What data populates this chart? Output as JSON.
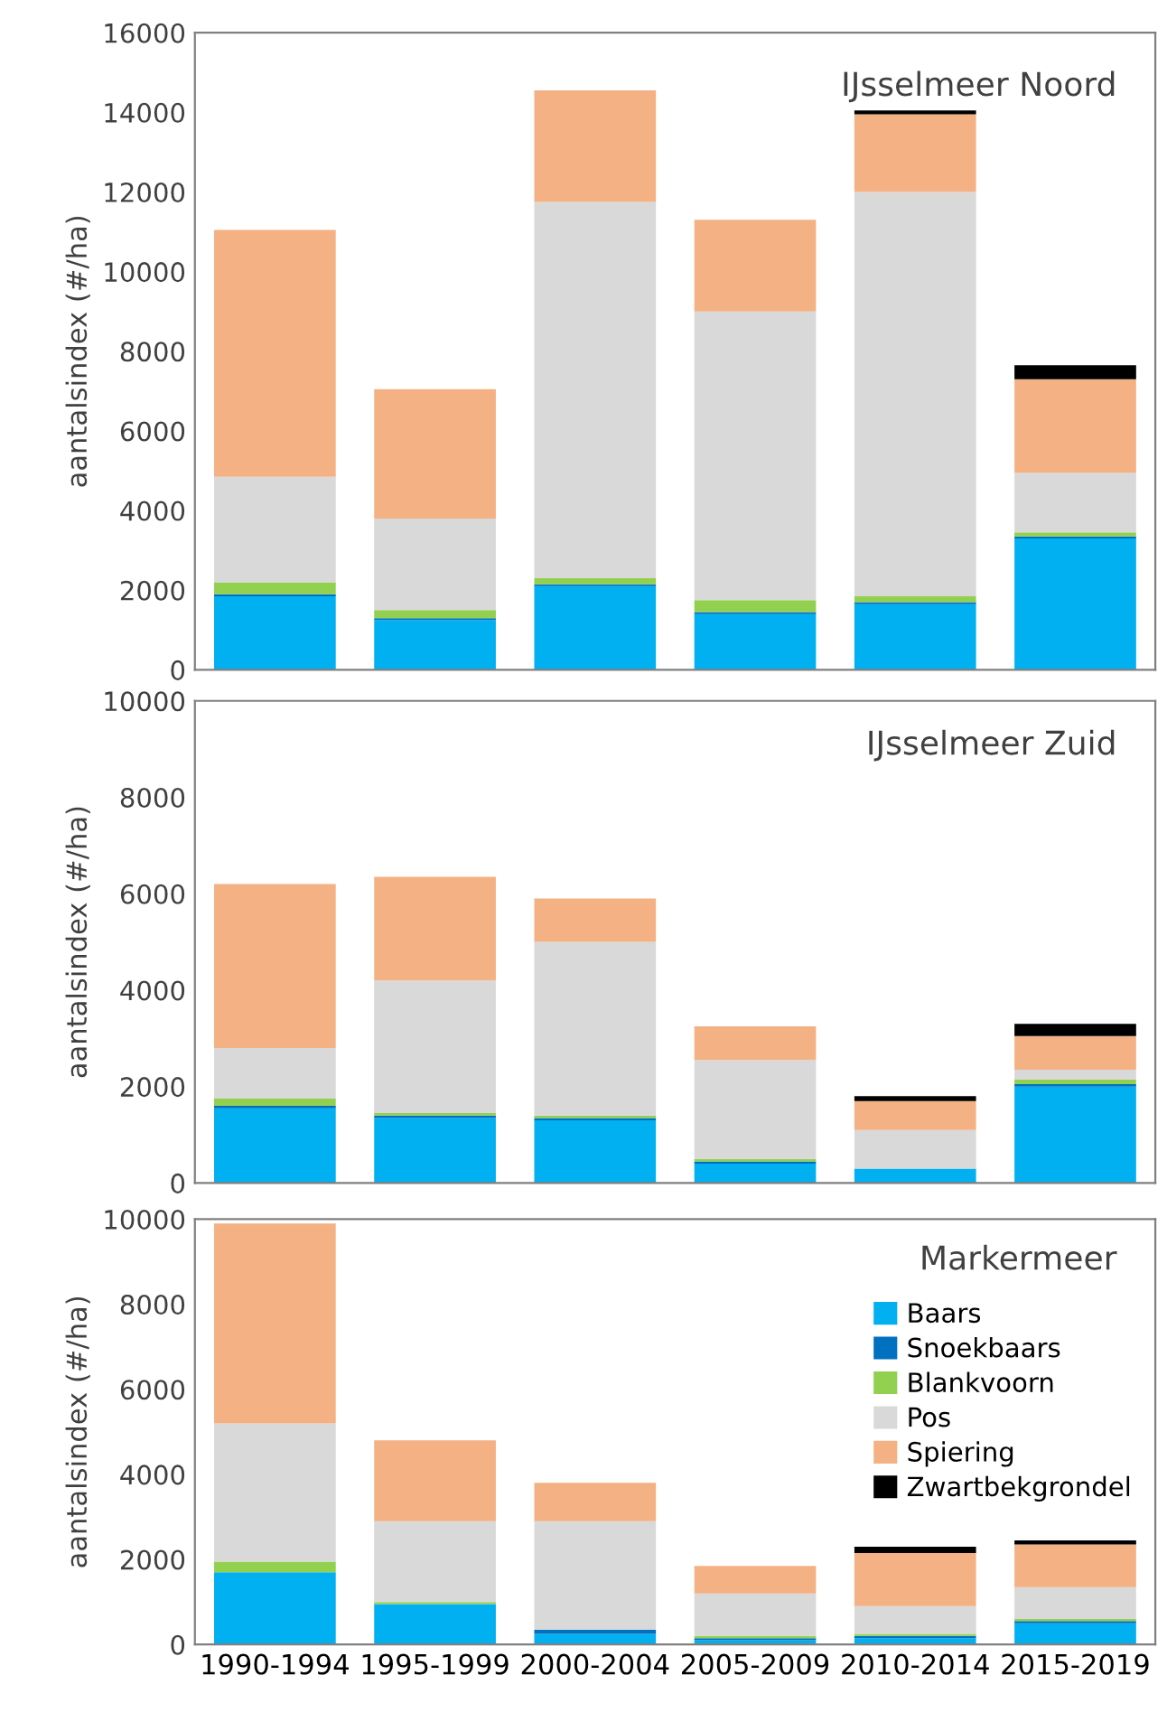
{
  "chart_data": [
    {
      "type": "bar",
      "stacked": true,
      "title": "IJsselmeer Noord",
      "ylabel": "aantalsindex (#/ha)",
      "categories": [
        null,
        null,
        null,
        null,
        null,
        null
      ],
      "ylim": [
        0,
        16000
      ],
      "yticks": [
        0,
        2000,
        4000,
        6000,
        8000,
        10000,
        12000,
        14000,
        16000
      ],
      "tick_labels": "y",
      "grid": false,
      "legend": false,
      "series": [
        {
          "color": "#00b0f0",
          "values": [
            1850,
            1250,
            2100,
            1400,
            1650,
            3300
          ]
        },
        {
          "color": "#0070c0",
          "values": [
            50,
            50,
            50,
            50,
            50,
            50
          ]
        },
        {
          "color": "#92d050",
          "values": [
            300,
            200,
            150,
            300,
            150,
            100
          ]
        },
        {
          "color": "#d9d9d9",
          "values": [
            2650,
            2300,
            9450,
            7250,
            10150,
            1500
          ]
        },
        {
          "color": "#f4b183",
          "values": [
            6200,
            3250,
            2800,
            2300,
            1950,
            2350
          ]
        },
        {
          "color": "#000000",
          "values": [
            0,
            0,
            0,
            0,
            100,
            350
          ]
        }
      ]
    },
    {
      "type": "bar",
      "stacked": true,
      "title": "IJsselmeer Zuid",
      "ylabel": "aantalsindex (#/ha)",
      "categories": [
        null,
        null,
        null,
        null,
        null,
        null
      ],
      "ylim": [
        0,
        10000
      ],
      "yticks": [
        0,
        2000,
        4000,
        6000,
        8000,
        10000
      ],
      "tick_labels": "y",
      "grid": false,
      "legend": false,
      "series": [
        {
          "color": "#00b0f0",
          "values": [
            1550,
            1350,
            1300,
            400,
            300,
            2000
          ]
        },
        {
          "color": "#0070c0",
          "values": [
            50,
            50,
            50,
            50,
            0,
            50
          ]
        },
        {
          "color": "#92d050",
          "values": [
            150,
            50,
            50,
            50,
            0,
            100
          ]
        },
        {
          "color": "#d9d9d9",
          "values": [
            1050,
            2750,
            3600,
            2050,
            800,
            200
          ]
        },
        {
          "color": "#f4b183",
          "values": [
            3400,
            2150,
            900,
            700,
            600,
            700
          ]
        },
        {
          "color": "#000000",
          "values": [
            0,
            0,
            0,
            0,
            100,
            250
          ]
        }
      ]
    },
    {
      "type": "bar",
      "stacked": true,
      "title": "Markermeer",
      "ylabel": "aantalsindex (#/ha)",
      "categories": [
        "1990-1994",
        "1995-1999",
        "2000-2004",
        "2005-2009",
        "2010-2014",
        "2015-2019"
      ],
      "ylim": [
        0,
        10000
      ],
      "yticks": [
        0,
        2000,
        4000,
        6000,
        8000,
        10000
      ],
      "grid": false,
      "legend": "top right",
      "series": [
        {
          "name": "Baars",
          "color": "#00b0f0",
          "values": [
            1700,
            950,
            250,
            100,
            150,
            500
          ]
        },
        {
          "name": "Snoekbaars",
          "color": "#0070c0",
          "values": [
            0,
            0,
            100,
            50,
            50,
            50
          ]
        },
        {
          "name": "Blankvoorn",
          "color": "#92d050",
          "values": [
            250,
            50,
            0,
            50,
            50,
            50
          ]
        },
        {
          "name": "Pos",
          "color": "#d9d9d9",
          "values": [
            3250,
            1900,
            2550,
            1000,
            650,
            750
          ]
        },
        {
          "name": "Spiering",
          "color": "#f4b183",
          "values": [
            4700,
            1900,
            900,
            650,
            1250,
            1000
          ]
        },
        {
          "name": "Zwartbekgrondel",
          "color": "#000000",
          "values": [
            0,
            0,
            0,
            0,
            150,
            100
          ]
        }
      ]
    }
  ]
}
